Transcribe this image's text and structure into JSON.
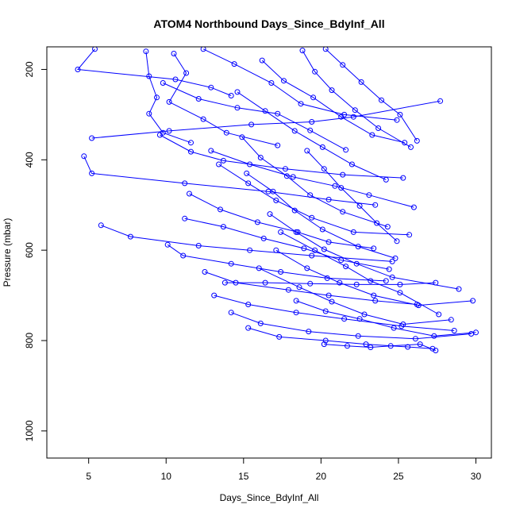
{
  "chart_data": {
    "type": "line",
    "title": "ATOM4 Northbound Days_Since_BdyInf_All",
    "xlabel": "Days_Since_BdyInf_All",
    "ylabel": "Pressure (mbar)",
    "xlim": [
      2.3,
      31
    ],
    "ylim": [
      1060,
      150
    ],
    "y_axis_inverted": true,
    "x_ticks": [
      5,
      10,
      15,
      20,
      25,
      30
    ],
    "y_ticks": [
      200,
      400,
      600,
      800,
      1000
    ],
    "grid": false,
    "legend": "none",
    "series_style": "blue lines with open circle markers",
    "series": [
      {
        "values": [
          [
            5.4,
            155
          ],
          [
            4.3,
            200
          ],
          [
            10.6,
            222
          ],
          [
            12.9,
            240
          ],
          [
            14.2,
            258
          ]
        ]
      },
      {
        "values": [
          [
            8.7,
            160
          ],
          [
            8.9,
            215
          ],
          [
            9.4,
            262
          ],
          [
            8.9,
            298
          ],
          [
            9.8,
            340
          ],
          [
            11.6,
            362
          ]
        ]
      },
      {
        "values": [
          [
            10.5,
            165
          ],
          [
            11.3,
            208
          ],
          [
            10.2,
            272
          ],
          [
            12.4,
            310
          ],
          [
            13.9,
            340
          ],
          [
            17.2,
            368
          ]
        ]
      },
      {
        "values": [
          [
            5.2,
            352
          ],
          [
            10.2,
            336
          ],
          [
            15.5,
            322
          ],
          [
            19.4,
            316
          ],
          [
            22.1,
            305
          ],
          [
            27.7,
            270
          ]
        ]
      },
      {
        "values": [
          [
            4.7,
            392
          ],
          [
            5.2,
            430
          ],
          [
            11.2,
            452
          ],
          [
            16.6,
            470
          ],
          [
            20.5,
            488
          ],
          [
            23.5,
            500
          ]
        ]
      },
      {
        "values": [
          [
            5.8,
            545
          ],
          [
            7.7,
            570
          ],
          [
            12.1,
            590
          ],
          [
            15.4,
            600
          ],
          [
            19.4,
            612
          ],
          [
            24.6,
            625
          ]
        ]
      },
      {
        "values": [
          [
            10.1,
            588
          ],
          [
            11.1,
            612
          ],
          [
            14.2,
            630
          ],
          [
            17.4,
            648
          ],
          [
            20.4,
            662
          ],
          [
            24.2,
            668
          ]
        ]
      },
      {
        "values": [
          [
            9.6,
            345
          ],
          [
            11.6,
            382
          ],
          [
            13.7,
            402
          ],
          [
            17.7,
            420
          ],
          [
            21.4,
            433
          ],
          [
            25.3,
            440
          ]
        ]
      },
      {
        "values": [
          [
            12.4,
            155
          ],
          [
            14.4,
            188
          ],
          [
            16.8,
            230
          ],
          [
            18.7,
            276
          ],
          [
            21.5,
            300
          ],
          [
            24.9,
            312
          ]
        ]
      },
      {
        "values": [
          [
            11.5,
            475
          ],
          [
            13.5,
            510
          ],
          [
            15.9,
            538
          ],
          [
            18.5,
            560
          ],
          [
            20.5,
            582
          ],
          [
            23.4,
            596
          ]
        ]
      },
      {
        "values": [
          [
            12.5,
            648
          ],
          [
            14.5,
            672
          ],
          [
            17.9,
            688
          ],
          [
            20.5,
            700
          ],
          [
            23.5,
            712
          ],
          [
            26.2,
            720
          ]
        ]
      },
      {
        "values": [
          [
            13.1,
            700
          ],
          [
            15.3,
            720
          ],
          [
            18.4,
            738
          ],
          [
            21.5,
            752
          ],
          [
            25.2,
            768
          ],
          [
            28.6,
            778
          ]
        ]
      },
      {
        "values": [
          [
            14.2,
            738
          ],
          [
            16.1,
            762
          ],
          [
            19.2,
            780
          ],
          [
            22.4,
            790
          ],
          [
            26.1,
            796
          ],
          [
            29.7,
            785
          ]
        ]
      },
      {
        "values": [
          [
            15.3,
            772
          ],
          [
            17.3,
            792
          ],
          [
            20.3,
            800
          ],
          [
            22.9,
            808
          ],
          [
            25.6,
            814
          ],
          [
            27.2,
            818
          ]
        ]
      },
      {
        "values": [
          [
            16.2,
            180
          ],
          [
            17.6,
            225
          ],
          [
            19.5,
            262
          ],
          [
            21.3,
            305
          ],
          [
            23.3,
            345
          ],
          [
            25.4,
            362
          ]
        ]
      },
      {
        "values": [
          [
            18.8,
            158
          ],
          [
            19.6,
            205
          ],
          [
            20.7,
            246
          ],
          [
            22.2,
            290
          ],
          [
            23.7,
            330
          ],
          [
            25.8,
            372
          ]
        ]
      },
      {
        "values": [
          [
            14.9,
            350
          ],
          [
            16.1,
            395
          ],
          [
            17.8,
            436
          ],
          [
            19.3,
            478
          ],
          [
            21.4,
            515
          ],
          [
            24.3,
            548
          ]
        ]
      },
      {
        "values": [
          [
            13.4,
            410
          ],
          [
            15.3,
            452
          ],
          [
            17.1,
            490
          ],
          [
            19.4,
            528
          ],
          [
            22.1,
            560
          ],
          [
            25.7,
            566
          ]
        ]
      },
      {
        "values": [
          [
            16.7,
            520
          ],
          [
            18.4,
            560
          ],
          [
            20.2,
            598
          ],
          [
            22.3,
            630
          ],
          [
            24.6,
            660
          ],
          [
            28.9,
            686
          ]
        ]
      },
      {
        "values": [
          [
            17.1,
            600
          ],
          [
            19.1,
            640
          ],
          [
            21.2,
            672
          ],
          [
            23.4,
            700
          ],
          [
            26.3,
            722
          ],
          [
            29.8,
            712
          ]
        ]
      },
      {
        "values": [
          [
            13.8,
            672
          ],
          [
            16.4,
            672
          ],
          [
            19.3,
            674
          ],
          [
            22.3,
            676
          ],
          [
            25.1,
            676
          ],
          [
            27.4,
            672
          ]
        ]
      },
      {
        "values": [
          [
            18.4,
            712
          ],
          [
            20.3,
            735
          ],
          [
            22.5,
            752
          ],
          [
            24.7,
            772
          ],
          [
            27.3,
            790
          ],
          [
            30.0,
            782
          ]
        ]
      },
      {
        "values": [
          [
            20.2,
            808
          ],
          [
            21.7,
            812
          ],
          [
            23.2,
            815
          ],
          [
            24.5,
            812
          ],
          [
            26.4,
            808
          ],
          [
            27.4,
            822
          ]
        ]
      },
      {
        "values": [
          [
            9.8,
            230
          ],
          [
            12.1,
            265
          ],
          [
            14.6,
            285
          ],
          [
            17.2,
            298
          ],
          [
            19.3,
            335
          ],
          [
            21.6,
            378
          ]
        ]
      },
      {
        "values": [
          [
            11.2,
            530
          ],
          [
            13.7,
            548
          ],
          [
            16.3,
            574
          ],
          [
            18.9,
            596
          ],
          [
            21.3,
            622
          ],
          [
            24.4,
            642
          ]
        ]
      },
      {
        "values": [
          [
            15.2,
            430
          ],
          [
            16.9,
            470
          ],
          [
            18.3,
            512
          ],
          [
            20.1,
            554
          ],
          [
            22.4,
            592
          ],
          [
            24.8,
            618
          ]
        ]
      },
      {
        "values": [
          [
            20.3,
            155
          ],
          [
            21.4,
            190
          ],
          [
            22.6,
            228
          ],
          [
            23.9,
            268
          ],
          [
            25.1,
            300
          ],
          [
            26.2,
            358
          ]
        ]
      },
      {
        "values": [
          [
            17.4,
            560
          ],
          [
            19.6,
            600
          ],
          [
            21.6,
            636
          ],
          [
            23.2,
            668
          ],
          [
            25.1,
            694
          ],
          [
            27.6,
            742
          ]
        ]
      },
      {
        "values": [
          [
            16.0,
            640
          ],
          [
            18.6,
            682
          ],
          [
            20.7,
            714
          ],
          [
            22.8,
            742
          ],
          [
            25.3,
            764
          ],
          [
            28.4,
            754
          ]
        ]
      },
      {
        "values": [
          [
            12.9,
            380
          ],
          [
            15.4,
            410
          ],
          [
            18.2,
            438
          ],
          [
            20.9,
            458
          ],
          [
            23.1,
            478
          ],
          [
            26.0,
            505
          ]
        ]
      },
      {
        "values": [
          [
            14.6,
            250
          ],
          [
            16.4,
            292
          ],
          [
            18.3,
            336
          ],
          [
            20.1,
            372
          ],
          [
            22.0,
            410
          ],
          [
            24.2,
            444
          ]
        ]
      },
      {
        "values": [
          [
            19.1,
            380
          ],
          [
            20.2,
            420
          ],
          [
            21.3,
            462
          ],
          [
            22.5,
            502
          ],
          [
            23.6,
            540
          ],
          [
            24.9,
            580
          ]
        ]
      }
    ]
  }
}
